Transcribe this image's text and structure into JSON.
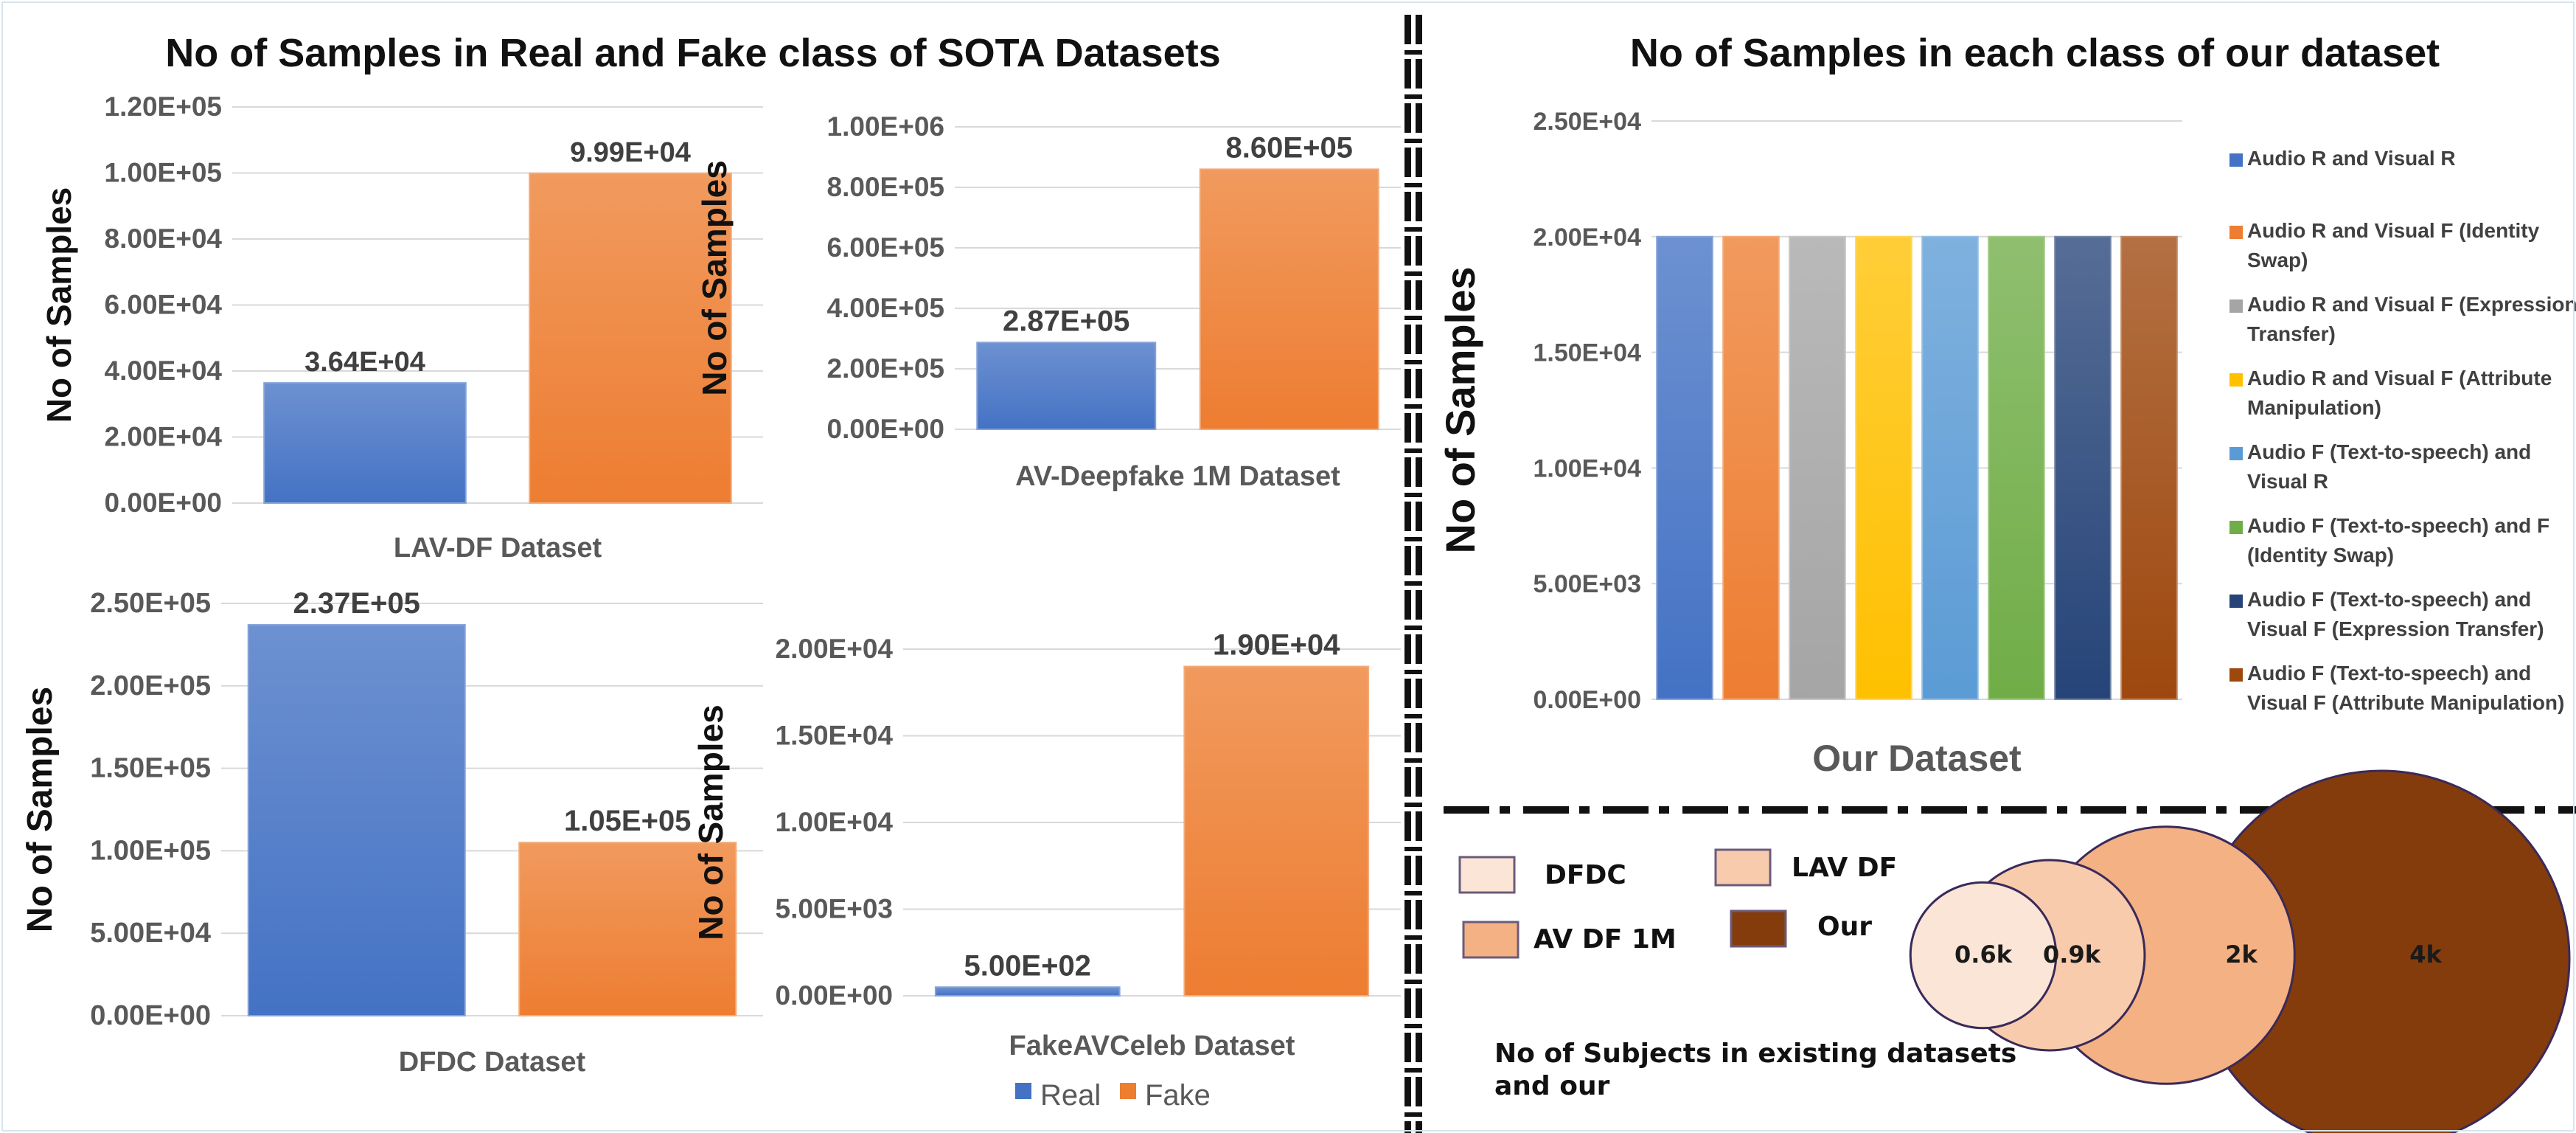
{
  "left_title": "No of Samples in Real and Fake class of  SOTA Datasets",
  "right_title": "No of Samples in each class of our dataset",
  "legend": {
    "real": "Real",
    "fake": "Fake"
  },
  "colors": {
    "real": "#4472c4",
    "fake": "#ed7d31",
    "text": "#595959",
    "title": "#111111",
    "grid": "#d9d9d9",
    "divider": "#111111"
  },
  "chart_data": [
    {
      "type": "bar",
      "title": "LAV-DF Dataset",
      "xlabel": "LAV-DF Dataset",
      "ylabel": "No of Samples",
      "categories": [
        "Real",
        "Fake"
      ],
      "values": [
        36400,
        99900
      ],
      "data_labels": [
        "3.64E+04",
        "9.99E+04"
      ],
      "yticks": [
        "0.00E+00",
        "2.00E+04",
        "4.00E+04",
        "6.00E+04",
        "8.00E+04",
        "1.00E+05",
        "1.20E+05"
      ],
      "ylim": [
        0,
        120000
      ],
      "grid": true
    },
    {
      "type": "bar",
      "title": "AV-Deepfake 1M Dataset",
      "xlabel": "AV-Deepfake 1M Dataset",
      "ylabel": "No of Samples",
      "categories": [
        "Real",
        "Fake"
      ],
      "values": [
        287000,
        860000
      ],
      "data_labels": [
        "2.87E+05",
        "8.60E+05"
      ],
      "yticks": [
        "0.00E+00",
        "2.00E+05",
        "4.00E+05",
        "6.00E+05",
        "8.00E+05",
        "1.00E+06"
      ],
      "ylim": [
        0,
        1000000
      ],
      "grid": true
    },
    {
      "type": "bar",
      "title": "DFDC Dataset",
      "xlabel": "DFDC Dataset",
      "ylabel": "No of Samples",
      "categories": [
        "Real",
        "Fake"
      ],
      "values": [
        237000,
        105000
      ],
      "data_labels": [
        "2.37E+05",
        "1.05E+05"
      ],
      "yticks": [
        "0.00E+00",
        "5.00E+04",
        "1.00E+05",
        "1.50E+05",
        "2.00E+05",
        "2.50E+05"
      ],
      "ylim": [
        0,
        250000
      ],
      "grid": true
    },
    {
      "type": "bar",
      "title": "FakeAVCeleb Dataset",
      "xlabel": "FakeAVCeleb Dataset",
      "ylabel": "No of Samples",
      "categories": [
        "Real",
        "Fake"
      ],
      "values": [
        500,
        19000
      ],
      "data_labels": [
        "5.00E+02",
        "1.90E+04"
      ],
      "yticks": [
        "0.00E+00",
        "5.00E+03",
        "1.00E+04",
        "1.50E+04",
        "2.00E+04"
      ],
      "ylim": [
        0,
        20000
      ],
      "grid": true
    },
    {
      "type": "bar",
      "title": "Our Dataset",
      "xlabel": "Our Dataset",
      "ylabel": "No of Samples",
      "categories": [
        "Audio R and Visual R",
        "Audio R and Visual F (Identity Swap)",
        "Audio R and Visual F (Expression Transfer)",
        "Audio R and Visual F (Attribute Manipulation)",
        "Audio F (Text-to-speech)  and Visual R",
        "Audio F (Text-to-speech) and F (Identity Swap)",
        "Audio F (Text-to-speech) and Visual F (Expression Transfer)",
        "Audio F (Text-to-speech) and Visual  F (Attribute Manipulation)"
      ],
      "legend_lines": [
        [
          "Audio R and Visual R"
        ],
        [
          "Audio R and Visual F (Identity",
          "Swap)"
        ],
        [
          "Audio R and Visual F (Expression",
          "Transfer)"
        ],
        [
          "Audio R and Visual F (Attribute",
          "Manipulation)"
        ],
        [
          "Audio F (Text-to-speech)  and",
          "Visual R"
        ],
        [
          "Audio F (Text-to-speech) and F",
          "(Identity Swap)"
        ],
        [
          "Audio F (Text-to-speech) and",
          "Visual F (Expression Transfer)"
        ],
        [
          "Audio F (Text-to-speech) and",
          "Visual  F (Attribute Manipulation)"
        ]
      ],
      "values": [
        20000,
        20000,
        20000,
        20000,
        20000,
        20000,
        20000,
        20000
      ],
      "colors": [
        "#4472c4",
        "#ed7d31",
        "#a5a5a5",
        "#ffc000",
        "#5b9bd5",
        "#70ad47",
        "#264478",
        "#9e480e"
      ],
      "yticks": [
        "0.00E+00",
        "5.00E+03",
        "1.00E+04",
        "1.50E+04",
        "2.00E+04",
        "2.50E+04"
      ],
      "ylim": [
        0,
        25000
      ],
      "legend_position": "right",
      "grid": true
    },
    {
      "type": "bubble",
      "caption_lines": [
        "No of Subjects in existing datasets",
        "and our"
      ],
      "categories": [
        "DFDC",
        "LAV DF",
        "AV DF 1M",
        "Our"
      ],
      "values": [
        600,
        900,
        2000,
        4000
      ],
      "data_labels": [
        "0.6k",
        "0.9k",
        "2k",
        "4k"
      ],
      "colors": [
        "#fbe5d6",
        "#f8cbad",
        "#f4b183",
        "#843c0c"
      ]
    }
  ]
}
